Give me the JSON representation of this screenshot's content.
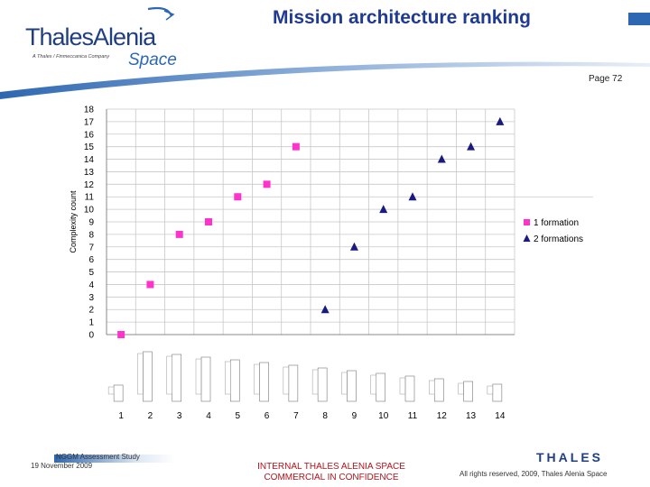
{
  "header": {
    "logo_line1": "ThalesAlenia",
    "logo_line2": "Space",
    "logo_tagline": "A Thales / Finmeccanica Company",
    "title": "Mission architecture ranking",
    "page_label": "Page 72"
  },
  "chart_data": {
    "type": "scatter",
    "title": "",
    "xlabel": "",
    "ylabel": "Complexity count",
    "ylim": [
      0,
      18
    ],
    "y_ticks": [
      0,
      1,
      2,
      3,
      4,
      5,
      6,
      7,
      8,
      9,
      10,
      11,
      12,
      13,
      14,
      15,
      16,
      17,
      18
    ],
    "x_ticks": [
      "1",
      "2",
      "3",
      "4",
      "5",
      "6",
      "7",
      "8",
      "9",
      "10",
      "11",
      "12",
      "13",
      "14"
    ],
    "grid": true,
    "legend_position": "right",
    "series": [
      {
        "name": "1 formation",
        "marker": "square",
        "color": "#ff33cc",
        "x": [
          1,
          2,
          3,
          4,
          5,
          6,
          7
        ],
        "y": [
          0,
          4,
          8,
          9,
          11,
          12,
          15
        ]
      },
      {
        "name": "2 formations",
        "marker": "triangle",
        "color": "#1a1a80",
        "x": [
          8,
          9,
          10,
          11,
          12,
          13,
          14
        ],
        "y": [
          2,
          7,
          10,
          11,
          14,
          15,
          17
        ]
      }
    ]
  },
  "footer": {
    "study": "NGGM Assessment Study",
    "date": "19 November 2009",
    "confidential_line1": "INTERNAL THALES ALENIA SPACE",
    "confidential_line2": "COMMERCIAL IN CONFIDENCE",
    "thales_logo": "THALES",
    "rights": "All rights reserved, 2009, Thales Alenia Space"
  }
}
